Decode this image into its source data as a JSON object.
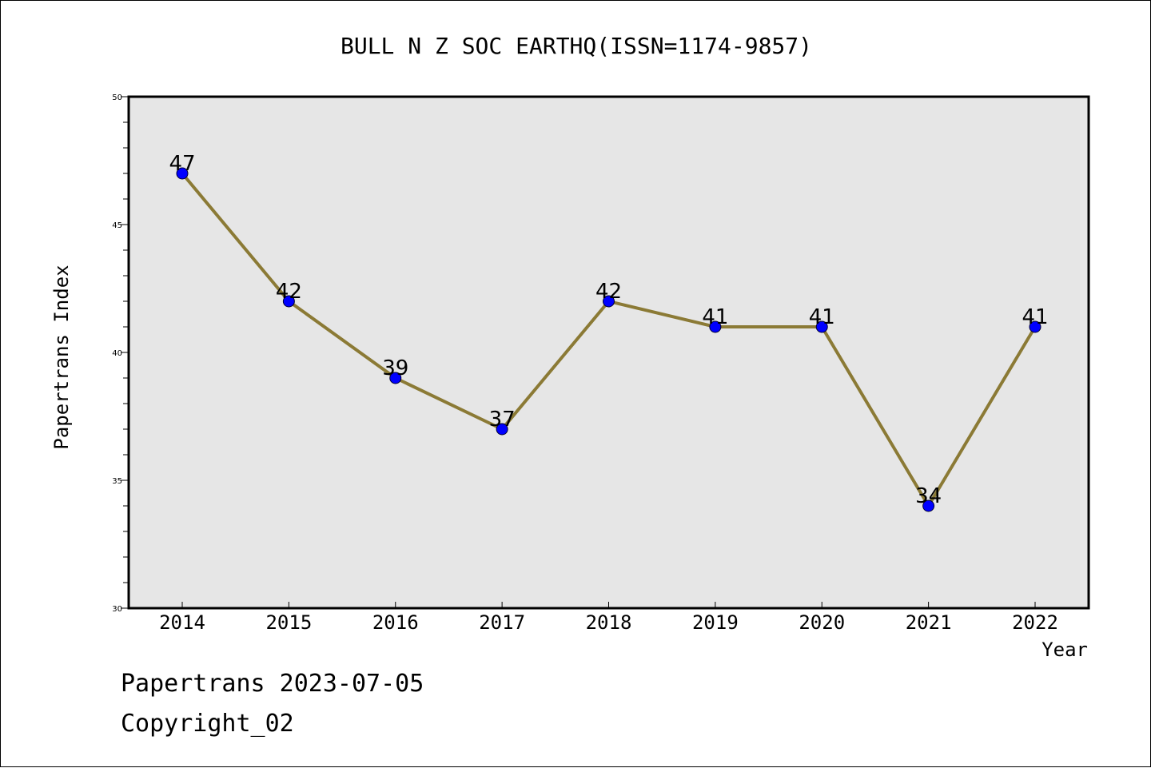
{
  "chart_data": {
    "type": "line",
    "title": "BULL N Z SOC EARTHQ(ISSN=1174-9857)",
    "xlabel": "Year",
    "ylabel": "Papertrans Index",
    "categories": [
      "2014",
      "2015",
      "2016",
      "2017",
      "2018",
      "2019",
      "2020",
      "2021",
      "2022"
    ],
    "values": [
      47,
      42,
      39,
      37,
      42,
      41,
      41,
      34,
      41
    ],
    "ylim": [
      30,
      50
    ],
    "yticks": [
      "30",
      "35",
      "40",
      "45",
      "50"
    ],
    "grid": false,
    "legend": "none",
    "colors": {
      "line": "#8b7a35",
      "marker": "#0000ff",
      "plot_bg": "#e6e6e6"
    }
  },
  "footer": {
    "line1": "Papertrans 2023-07-05",
    "line2": "Copyright_02"
  }
}
